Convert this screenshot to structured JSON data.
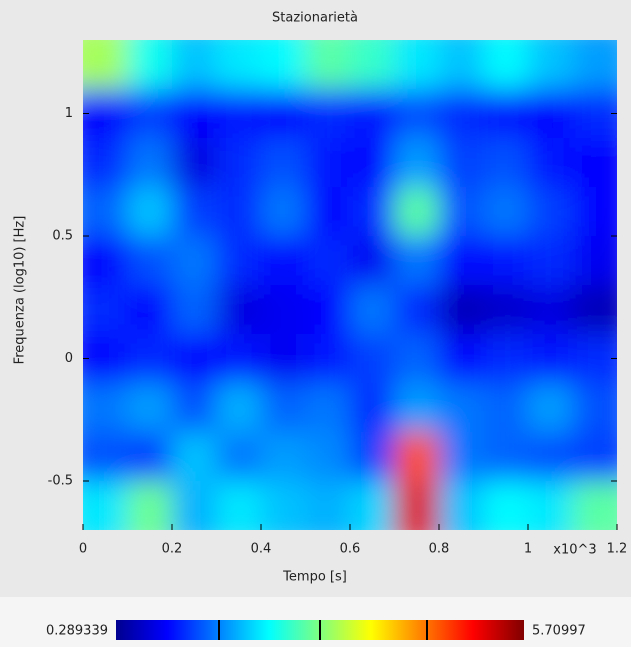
{
  "chart_data": {
    "type": "heatmap",
    "title": "Stazionarietà",
    "xlabel": "Tempo [s]",
    "ylabel": "Frequenza (log10) [Hz]",
    "annotation": "x10^3",
    "xlim": [
      0,
      1.2
    ],
    "ylim": [
      -0.7,
      1.3
    ],
    "xticks": [
      0,
      0.2,
      0.4,
      0.6,
      0.8,
      1,
      1.2
    ],
    "yticks": [
      -0.5,
      0,
      0.5,
      1
    ],
    "xbins": [
      0,
      0.1,
      0.2,
      0.3,
      0.4,
      0.5,
      0.6,
      0.7,
      0.8,
      0.9,
      1,
      1.1,
      1.2
    ],
    "ybins": [
      1.3,
      1.1,
      0.9,
      0.7,
      0.5,
      0.3,
      0.1,
      -0.1,
      -0.3,
      -0.5,
      -0.7
    ],
    "zlim": [
      0.289339,
      5.70997
    ],
    "colormap": "jet",
    "z": [
      [
        3.2,
        2.4,
        2.0,
        2.2,
        2.3,
        2.8,
        2.6,
        2.2,
        2.0,
        2.3,
        2.0,
        1.8
      ],
      [
        1.0,
        1.3,
        1.0,
        1.1,
        1.0,
        1.2,
        1.1,
        1.4,
        1.2,
        1.1,
        1.0,
        1.2
      ],
      [
        1.2,
        1.6,
        0.8,
        1.2,
        1.4,
        1.1,
        1.0,
        1.8,
        1.3,
        1.4,
        1.1,
        1.0
      ],
      [
        1.5,
        2.0,
        1.3,
        1.2,
        1.6,
        1.0,
        1.2,
        2.8,
        1.4,
        1.6,
        1.3,
        1.0
      ],
      [
        1.0,
        1.4,
        1.6,
        1.2,
        1.0,
        1.2,
        0.9,
        1.6,
        1.0,
        1.1,
        1.2,
        0.9
      ],
      [
        1.2,
        1.0,
        1.5,
        0.8,
        0.9,
        1.0,
        1.6,
        1.2,
        0.6,
        0.7,
        0.8,
        0.6
      ],
      [
        1.0,
        1.2,
        1.0,
        1.1,
        0.9,
        1.1,
        1.3,
        1.5,
        1.0,
        1.2,
        1.1,
        1.2
      ],
      [
        1.6,
        1.8,
        1.4,
        1.9,
        1.5,
        1.6,
        1.2,
        1.8,
        1.6,
        1.5,
        1.8,
        1.4
      ],
      [
        1.4,
        1.3,
        2.0,
        1.6,
        1.8,
        1.7,
        1.3,
        4.6,
        1.6,
        1.5,
        1.4,
        1.3
      ],
      [
        2.2,
        2.9,
        1.9,
        2.2,
        2.0,
        1.9,
        2.1,
        5.2,
        2.0,
        2.3,
        2.2,
        2.8
      ]
    ]
  }
}
